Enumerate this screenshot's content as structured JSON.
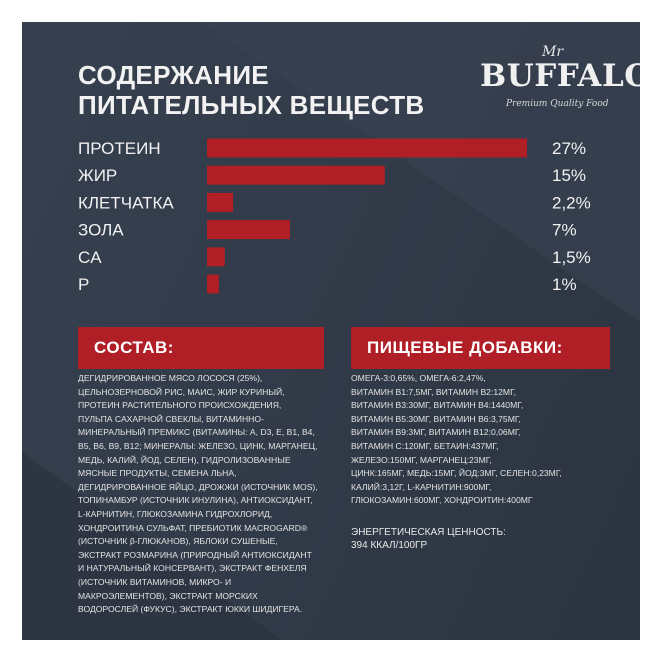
{
  "title": {
    "line1": "СОДЕРЖАНИЕ",
    "line2": "ПИТАТЕЛЬНЫХ ВЕЩЕСТВ"
  },
  "logo": {
    "prefix": "Mr",
    "brand": "BUFFALO",
    "tagline": "Premium Quality Food"
  },
  "colors": {
    "background": "#323b49",
    "accent": "#b01e26",
    "text": "#f2f2f2"
  },
  "chart_data": {
    "type": "bar",
    "orientation": "horizontal",
    "categories": [
      "ПРОТЕИН",
      "ЖИР",
      "КЛЕТЧАТКА",
      "ЗОЛА",
      "CA",
      "P"
    ],
    "values": [
      27,
      15,
      2.2,
      7,
      1.5,
      1
    ],
    "value_labels": [
      "27%",
      "15%",
      "2,2%",
      "7%",
      "1,5%",
      "1%"
    ],
    "unit": "%",
    "xlim": [
      0,
      27
    ],
    "bar_color": "#b01e26",
    "grid": false,
    "legend": "none"
  },
  "composition": {
    "heading": "СОСТАВ:",
    "text": "ДЕГИДРИРОВАННОЕ МЯСО ЛОСОСЯ (25%), ЦЕЛЬНОЗЕРНОВОЙ РИС, МАИС, ЖИР КУРИНЫЙ, ПРОТЕИН РАСТИТЕЛЬНОГО ПРОИСХОЖДЕНИЯ, ПУЛЬПА САХАРНОЙ СВЕКЛЫ, ВИТАМИННО-МИНЕРАЛЬНЫЙ ПРЕМИКС (ВИТАМИНЫ: A, D3, E, B1, B4, B5, B6, B9, B12; МИНЕРАЛЫ: ЖЕЛЕЗО, ЦИНК, МАРГАНЕЦ, МЕДЬ, КАЛИЙ, ЙОД, СЕЛЕН), ГИДРОЛИЗОВАННЫЕ МЯСНЫЕ ПРОДУКТЫ, СЕМЕНА ЛЬНА, ДЕГИДРИРОВАННОЕ ЯЙЦО, ДРОЖЖИ (ИСТОЧНИК MOS), ТОПИНАМБУР (ИСТОЧНИК ИНУЛИНА), АНТИОКСИДАНТ, L-КАРНИТИН, ГЛЮКОЗАМИНА ГИДРОХЛОРИД, ХОНДРОИТИНА СУЛЬФАТ, ПРЕБИОТИК MACROGARD® (ИСТОЧНИК β-ГЛЮКАНОВ), ЯБЛОКИ СУШЕНЫЕ, ЭКСТРАКТ РОЗМАРИНА (ПРИРОДНЫЙ АНТИОКСИДАНТ И НАТУРАЛЬНЫЙ КОНСЕРВАНТ), ЭКСТРАКТ ФЕНХЕЛЯ (ИСТОЧНИК ВИТАМИНОВ, МИКРО- И МАКРОЭЛЕМЕНТОВ), ЭКСТРАКТ МОРСКИХ ВОДОРОСЛЕЙ (ФУКУС), ЭКСТРАКТ ЮККИ ШИДИГЕРА."
  },
  "additives": {
    "heading": "ПИЩЕВЫЕ ДОБАВКИ:",
    "lines": [
      "ОМЕГА-3:0,65%, ОМЕГА-6:2,47%,",
      "ВИТАМИН B1:7,5МГ, ВИТАМИН B2:12МГ,",
      "ВИТАМИН B3:30МГ, ВИТАМИН B4:1440МГ,",
      "ВИТАМИН B5:30МГ, ВИТАМИН B6:3,75МГ,",
      "ВИТАМИН B9:3МГ, ВИТАМИН B12:0,06МГ,",
      "ВИТАМИН C:120МГ, БЕТАИН:437МГ,",
      "ЖЕЛЕЗО:150МГ, МАРГАНЕЦ:23МГ,",
      "ЦИНК:165МГ, МЕДЬ:15МГ, ЙОД:3МГ, СЕЛЕН:0,23МГ,",
      "КАЛИЙ:3,12Г, L-КАРНИТИН:900МГ,",
      "ГЛЮКОЗАМИН:600МГ, ХОНДРОИТИН:400МГ"
    ],
    "energy_label": "ЭНЕРГЕТИЧЕСКАЯ ЦЕННОСТЬ:",
    "energy_value": "394 ККАЛ/100ГР"
  }
}
